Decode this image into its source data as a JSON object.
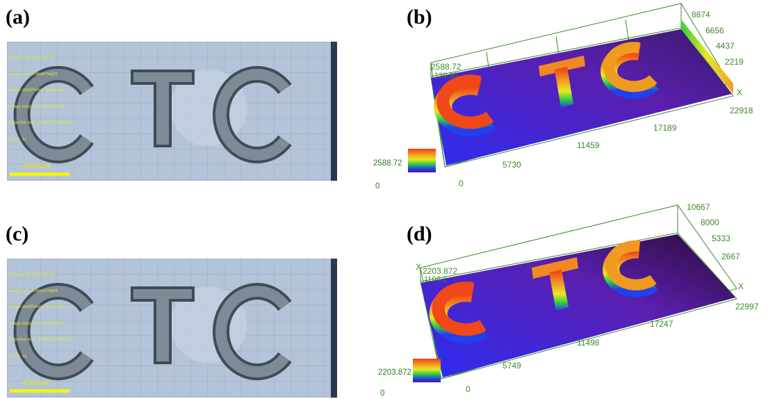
{
  "panels": {
    "a": {
      "label": "(a)"
    },
    "b": {
      "label": "(b)"
    },
    "c": {
      "label": "(c)"
    },
    "d": {
      "label": "(d)"
    }
  },
  "micrograph": {
    "overlay_lines": [
      "Observation method: BF",
      "Image type: Extend height",
      "Image size(Pixels): 9974x3862",
      "Image size(µm): 22918x8874",
      "Objective lens: XLMPLFLN10xDSX",
      "Zoom: 1x"
    ],
    "scale_bar_label": "4000μm",
    "letters": "CTC"
  },
  "plot_b": {
    "z_ticks": [
      "8874",
      "6656",
      "4437",
      "2219"
    ],
    "x_ticks": [
      "0",
      "5730",
      "11459",
      "17189",
      "22918"
    ],
    "x_axis_label": "X",
    "height_max": "2588.72",
    "height_partial": "139.95",
    "legend_max": "2588.72",
    "legend_min": "0"
  },
  "plot_d": {
    "z_ticks": [
      "10667",
      "8000",
      "5333",
      "2667"
    ],
    "x_ticks": [
      "0",
      "5749",
      "11498",
      "17247",
      "22997"
    ],
    "x_axis_label": "X",
    "y_axis_label": "X",
    "height_max": "2203.872",
    "height_partial": "1104.1",
    "legend_max": "2203.872",
    "legend_min": "0"
  },
  "colors": {
    "axis_green": "#3a8a2a",
    "plate_blue": "#3a2cf0",
    "letter_red": "#e8301a",
    "scale_yellow": "#f2f21a"
  }
}
